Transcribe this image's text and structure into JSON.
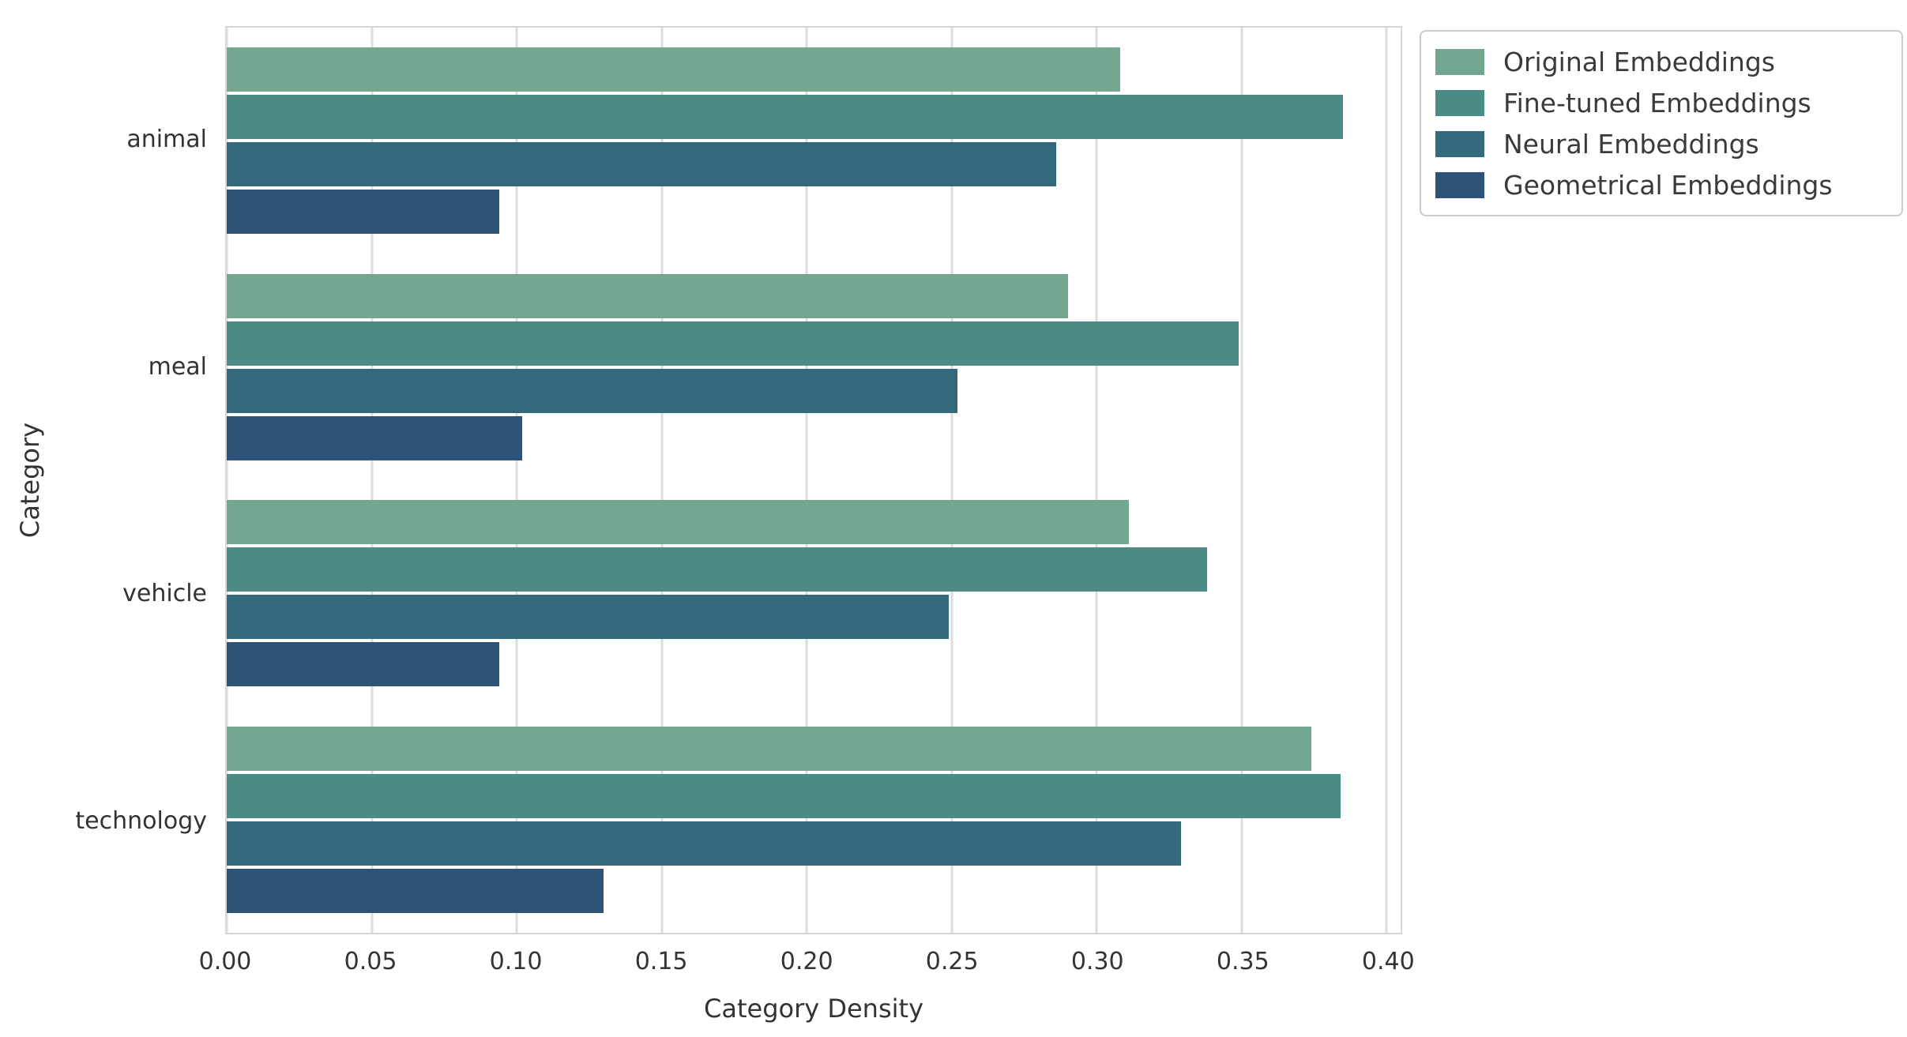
{
  "chart_data": {
    "type": "bar",
    "orientation": "horizontal",
    "title": "",
    "xlabel": "Category Density",
    "ylabel": "Category",
    "categories": [
      "animal",
      "meal",
      "vehicle",
      "technology"
    ],
    "series": [
      {
        "name": "Original Embeddings",
        "color": "#73a78f",
        "values": [
          0.308,
          0.29,
          0.311,
          0.374
        ]
      },
      {
        "name": "Fine-tuned Embeddings",
        "color": "#4d8b87",
        "values": [
          0.385,
          0.349,
          0.338,
          0.384
        ]
      },
      {
        "name": "Neural Embeddings",
        "color": "#32697d",
        "values": [
          0.286,
          0.252,
          0.249,
          0.329
        ]
      },
      {
        "name": "Geometrical Embeddings",
        "color": "#2d5377",
        "values": [
          0.094,
          0.102,
          0.094,
          0.13
        ]
      }
    ],
    "xlim": [
      0,
      0.4048
    ],
    "xticks": [
      0.0,
      0.05,
      0.1,
      0.15,
      0.2,
      0.25,
      0.3,
      0.35,
      0.4
    ],
    "xtick_labels": [
      "0.00",
      "0.05",
      "0.10",
      "0.15",
      "0.20",
      "0.25",
      "0.30",
      "0.35",
      "0.40"
    ],
    "grid": true,
    "grid_color": "#dcdcdc",
    "legend_position": "upper right outside",
    "background_color": "#ffffff"
  }
}
